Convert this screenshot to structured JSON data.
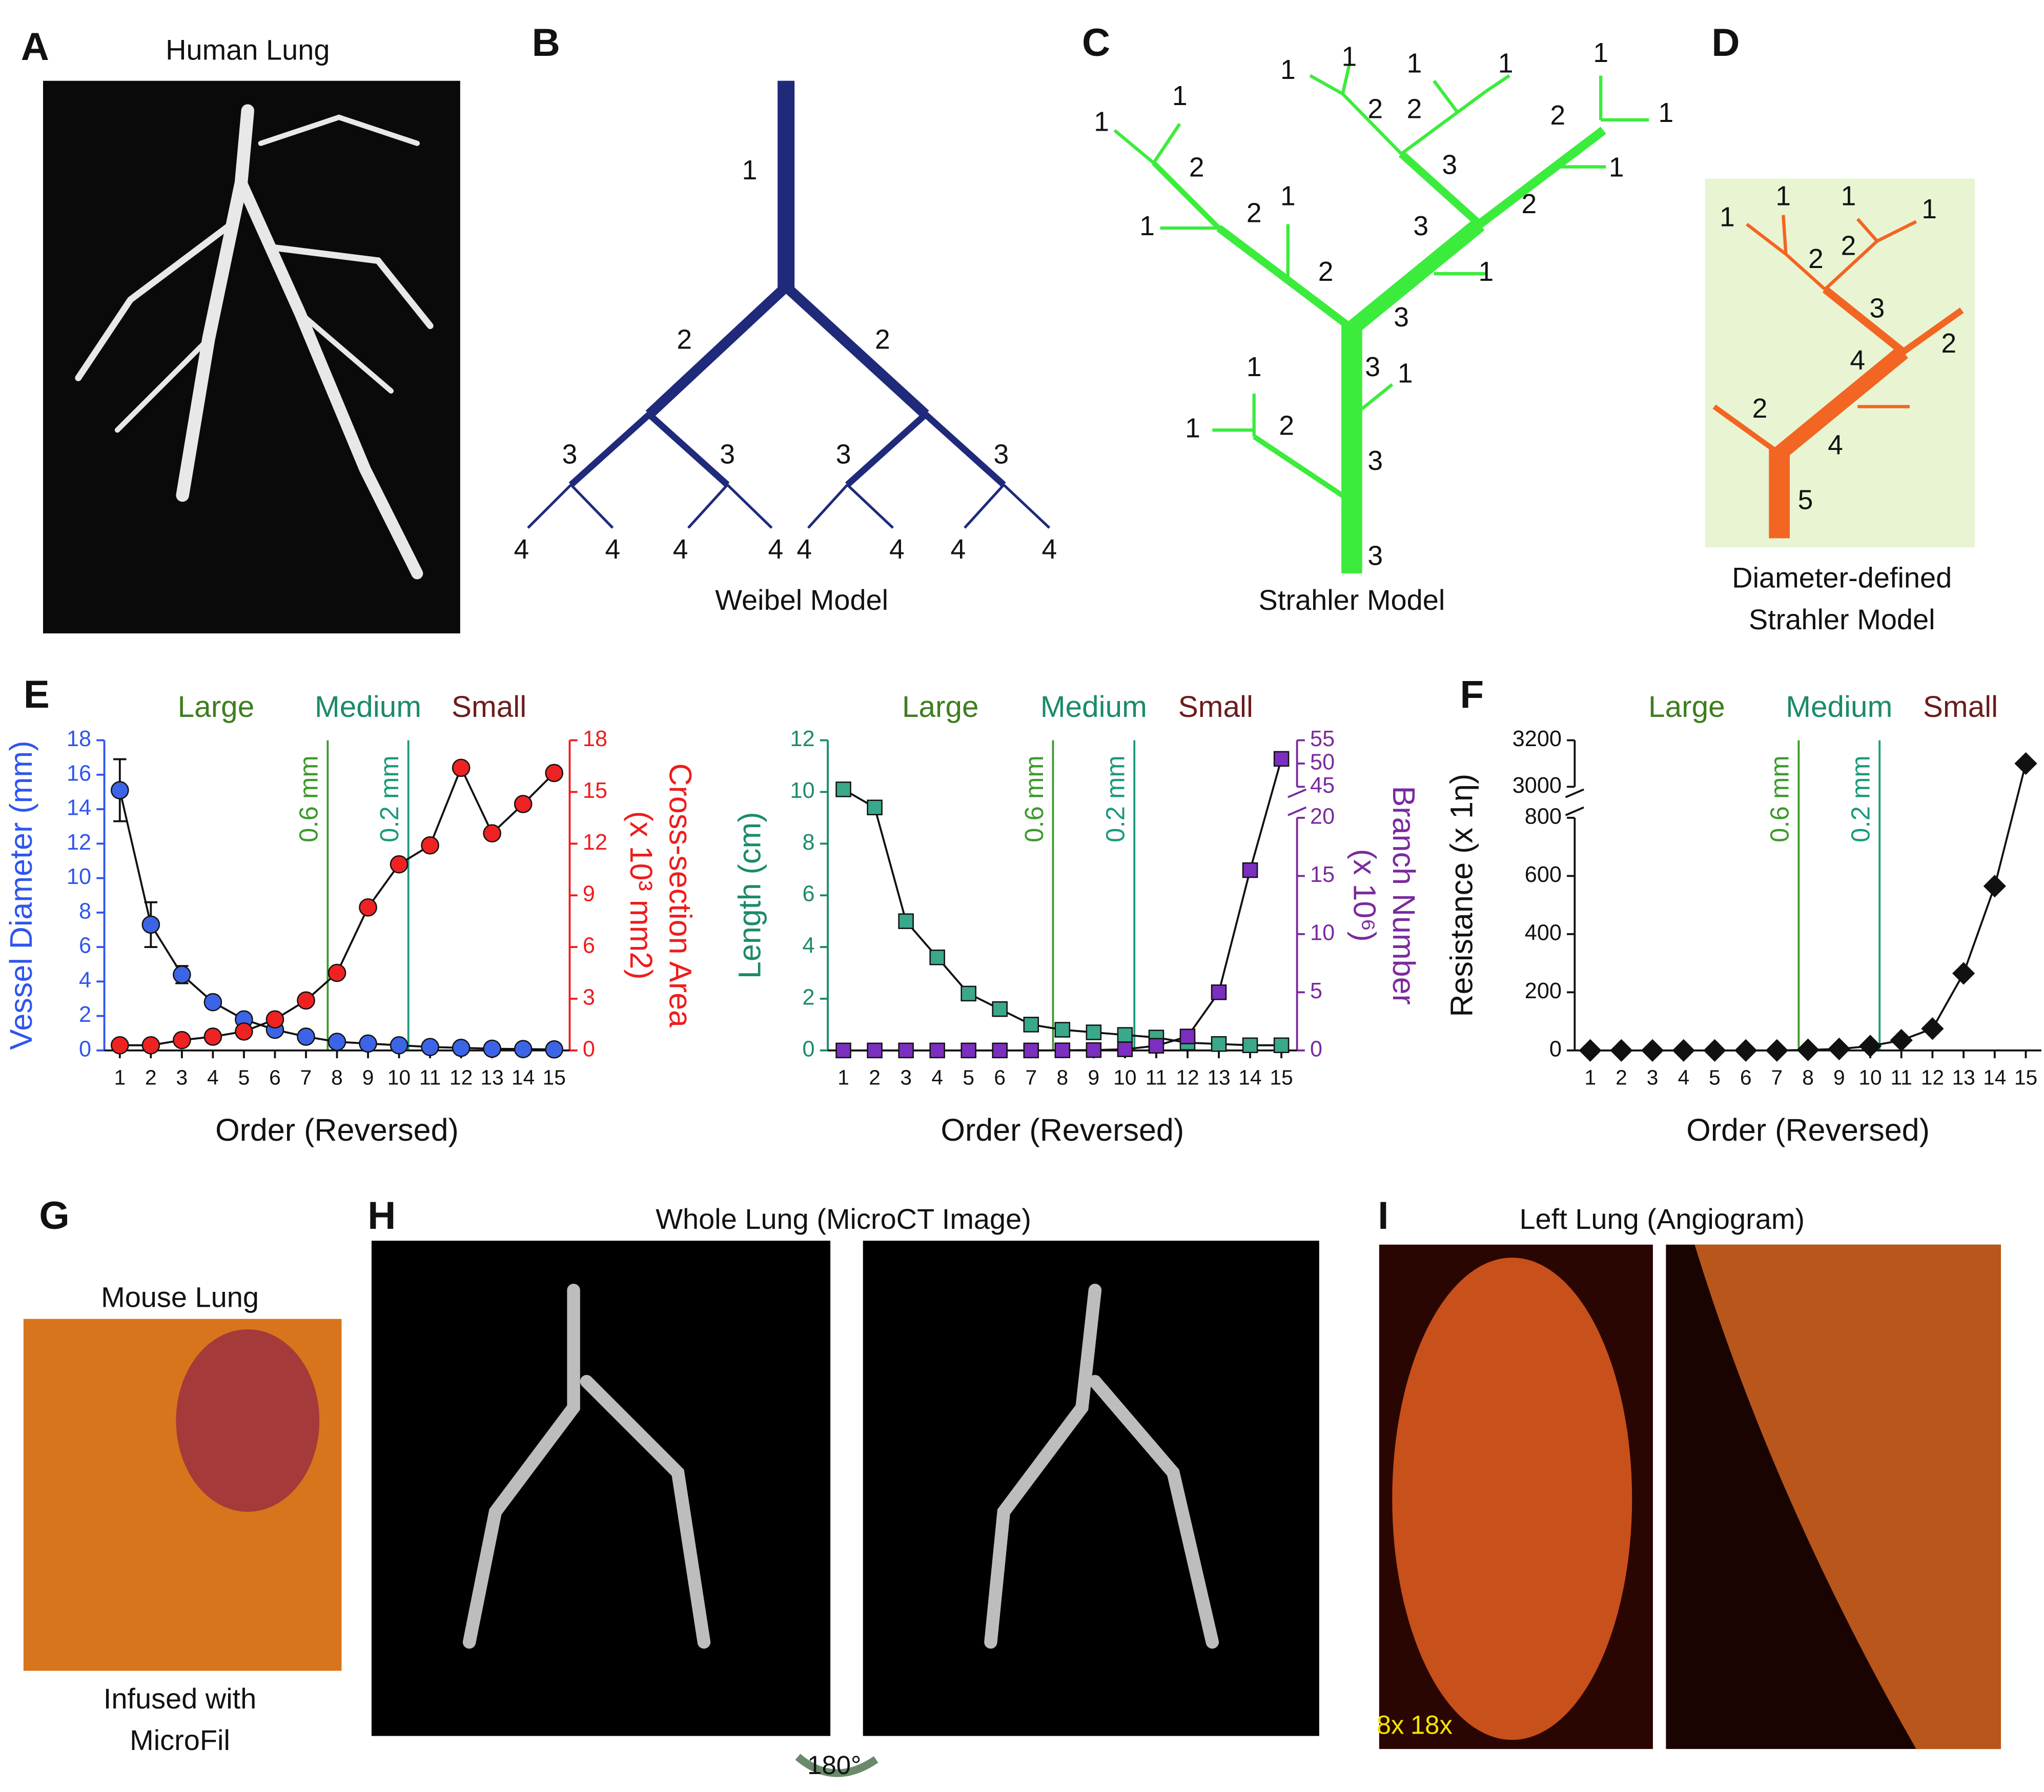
{
  "panel_labels": [
    "A",
    "B",
    "C",
    "D",
    "E",
    "F",
    "G",
    "H",
    "I"
  ],
  "panel_a": {
    "title": "Human Lung"
  },
  "panel_b": {
    "caption": "Weibel Model",
    "labels": [
      "1",
      "2",
      "2",
      "3",
      "3",
      "3",
      "3",
      "4",
      "4",
      "4",
      "4",
      "4",
      "4",
      "4",
      "4"
    ]
  },
  "panel_c": {
    "caption": "Strahler Model",
    "labels": [
      "1",
      "1",
      "1",
      "1",
      "2",
      "2",
      "3",
      "1",
      "1",
      "2",
      "1",
      "2",
      "3",
      "1",
      "3",
      "1",
      "1",
      "2",
      "2",
      "1",
      "1",
      "2",
      "3",
      "1",
      "1",
      "2",
      "1",
      "3",
      "3"
    ]
  },
  "panel_d": {
    "caption": [
      "Diameter-defined",
      "Strahler Model"
    ],
    "labels": [
      "1",
      "1",
      "1",
      "1",
      "2",
      "2",
      "3",
      "2",
      "4",
      "2",
      "4",
      "5"
    ]
  },
  "panel_g": {
    "title": "Mouse Lung",
    "caption": [
      "Infused with",
      "MicroFil"
    ]
  },
  "panel_h": {
    "title": "Whole Lung (MicroCT Image)",
    "rotation": "180°"
  },
  "panel_i": {
    "title": "Left Lung (Angiogram)",
    "magnifications": [
      "8x",
      "18x"
    ]
  },
  "chart_data": [
    {
      "type": "line",
      "xlabel": "Order (Reversed)",
      "ylabel": "Vessel Diameter (mm)",
      "y2label": [
        "Cross-section Area",
        "(x 10³ mm2)"
      ],
      "x": [
        1,
        2,
        3,
        4,
        5,
        6,
        7,
        8,
        9,
        10,
        11,
        12,
        13,
        14,
        15
      ],
      "xlim": [
        0.5,
        15.5
      ],
      "xticks": [
        1,
        2,
        3,
        4,
        5,
        6,
        7,
        8,
        9,
        10,
        11,
        12,
        13,
        14,
        15
      ],
      "ylim": [
        0,
        18
      ],
      "yticks": [
        0,
        2,
        4,
        6,
        8,
        10,
        12,
        14,
        16,
        18
      ],
      "ycolor": "#2f55ee",
      "y2lim": [
        0,
        18
      ],
      "y2ticks": [
        0,
        3,
        6,
        9,
        12,
        15,
        18
      ],
      "y2color": "#ee1c1c",
      "zones": [
        {
          "label": "Large",
          "color": "#3f7d1f"
        },
        {
          "label": "Medium",
          "color": "#1b8a6b"
        },
        {
          "label": "Small",
          "color": "#6b1c1c"
        }
      ],
      "vlines": [
        {
          "x": 7.7,
          "label": "0.6 mm",
          "color": "#3c9a2c"
        },
        {
          "x": 10.3,
          "label": "0.2 mm",
          "color": "#1b9a7c"
        }
      ],
      "series": [
        {
          "color": "#3c64e6",
          "marker": "circle",
          "values": [
            15.1,
            7.3,
            4.4,
            2.8,
            1.8,
            1.2,
            0.8,
            0.5,
            0.4,
            0.3,
            0.2,
            0.15,
            0.1,
            0.08,
            0.06
          ],
          "errors": [
            1.8,
            1.3,
            0.5,
            null,
            null,
            null,
            null,
            null,
            null,
            null,
            null,
            null,
            null,
            null,
            null
          ]
        },
        {
          "color": "#ee2222",
          "marker": "circle",
          "axis": "y2",
          "values": [
            0.3,
            0.3,
            0.6,
            0.8,
            1.1,
            1.8,
            2.9,
            4.5,
            8.3,
            10.8,
            11.9,
            16.4,
            12.6,
            14.3,
            16.1
          ]
        }
      ]
    },
    {
      "type": "line",
      "xlabel": "Order (Reversed)",
      "ylabel": "Length (cm)",
      "y2label": [
        "Branch Number",
        "(x 10⁶)"
      ],
      "x": [
        1,
        2,
        3,
        4,
        5,
        6,
        7,
        8,
        9,
        10,
        11,
        12,
        13,
        14,
        15
      ],
      "xlim": [
        0.5,
        15.5
      ],
      "xticks": [
        1,
        2,
        3,
        4,
        5,
        6,
        7,
        8,
        9,
        10,
        11,
        12,
        13,
        14,
        15
      ],
      "ylim": [
        0,
        12
      ],
      "yticks": [
        0,
        2,
        4,
        6,
        8,
        10,
        12
      ],
      "ycolor": "#1b8a6b",
      "y2lim": [
        0,
        55
      ],
      "y2break": [
        20,
        45
      ],
      "y2ticks": [
        0,
        5,
        10,
        15,
        20,
        45,
        50,
        55
      ],
      "y2color": "#7a2a9e",
      "zones": [
        {
          "label": "Large",
          "color": "#3f7d1f"
        },
        {
          "label": "Medium",
          "color": "#1b8a6b"
        },
        {
          "label": "Small",
          "color": "#6b1c1c"
        }
      ],
      "vlines": [
        {
          "x": 7.7,
          "label": "0.6 mm",
          "color": "#3c9a2c"
        },
        {
          "x": 10.3,
          "label": "0.2 mm",
          "color": "#1b9a7c"
        }
      ],
      "series": [
        {
          "color": "#3aa88a",
          "marker": "square",
          "values": [
            10.1,
            9.4,
            5.0,
            3.6,
            2.2,
            1.6,
            1.0,
            0.8,
            0.7,
            0.6,
            0.5,
            0.3,
            0.25,
            0.2,
            0.2
          ]
        },
        {
          "color": "#7b2fbe",
          "marker": "square",
          "axis": "y2",
          "values": [
            0,
            0,
            0,
            0,
            0,
            0,
            0,
            0.01,
            0.03,
            0.1,
            0.4,
            1.2,
            5.0,
            15.5,
            51
          ]
        }
      ]
    },
    {
      "type": "line",
      "xlabel": "Order (Reversed)",
      "ylabel": "Resistance (x 1η)",
      "x": [
        1,
        2,
        3,
        4,
        5,
        6,
        7,
        8,
        9,
        10,
        11,
        12,
        13,
        14,
        15
      ],
      "xlim": [
        0.5,
        15.5
      ],
      "xticks": [
        1,
        2,
        3,
        4,
        5,
        6,
        7,
        8,
        9,
        10,
        11,
        12,
        13,
        14,
        15
      ],
      "ylim": [
        0,
        3200
      ],
      "ybreak": [
        800,
        3000
      ],
      "yticks": [
        0,
        200,
        400,
        600,
        800,
        3000,
        3200
      ],
      "ycolor": "#111111",
      "zones": [
        {
          "label": "Large",
          "color": "#3f7d1f"
        },
        {
          "label": "Medium",
          "color": "#1b8a6b"
        },
        {
          "label": "Small",
          "color": "#6b1c1c"
        }
      ],
      "vlines": [
        {
          "x": 7.7,
          "label": "0.6 mm",
          "color": "#3c9a2c"
        },
        {
          "x": 10.3,
          "label": "0.2 mm",
          "color": "#1b9a7c"
        }
      ],
      "series": [
        {
          "color": "#111111",
          "marker": "diamond",
          "values": [
            0,
            0,
            0,
            0,
            0,
            0,
            0,
            2,
            5,
            15,
            35,
            75,
            265,
            565,
            3100
          ]
        }
      ]
    }
  ]
}
